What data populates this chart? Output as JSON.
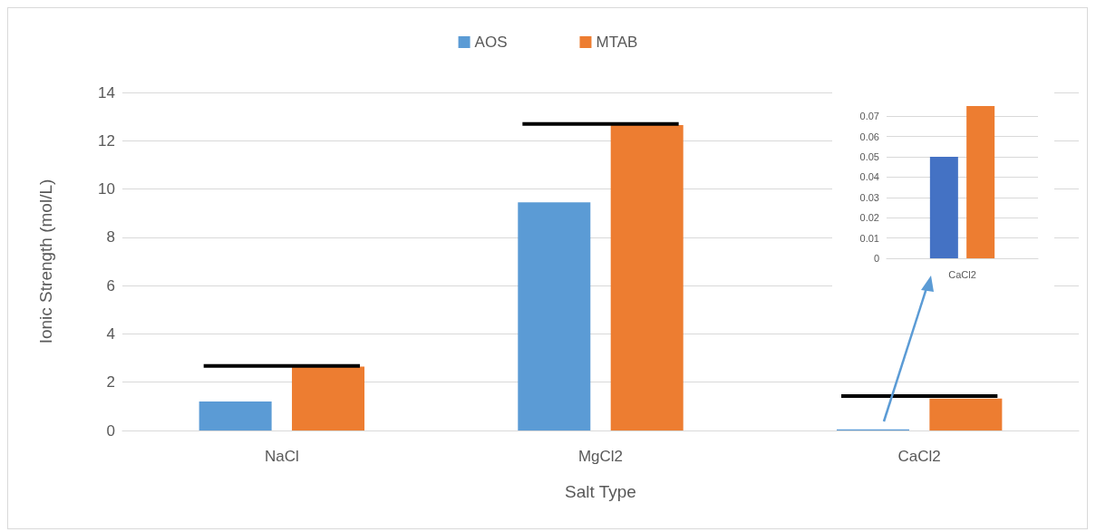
{
  "chart_data": [
    {
      "type": "bar",
      "xlabel": "Salt Type",
      "ylabel": "Ionic Strength (mol/L)",
      "categories": [
        "NaCl",
        "MgCl2",
        "CaCl2"
      ],
      "series": [
        {
          "name": "AOS",
          "color": "#5b9bd5",
          "values": [
            1.2,
            9.45,
            0.05
          ]
        },
        {
          "name": "MTAB",
          "color": "#ed7d31",
          "values": [
            2.65,
            12.65,
            1.32
          ]
        },
        {
          "color": "#000000",
          "base": [
            2.6,
            12.62,
            1.35
          ],
          "values": [
            0.15,
            0.15,
            0.15
          ]
        }
      ],
      "ylim": [
        0,
        14
      ],
      "yticks": [
        0,
        2,
        4,
        6,
        8,
        10,
        12,
        14
      ],
      "grid": "y",
      "legend": "top"
    },
    {
      "type": "bar",
      "categories": [
        "CaCl2"
      ],
      "series": [
        {
          "color": "#4472c4",
          "values": [
            0.05
          ]
        },
        {
          "color": "#ed7d31",
          "values": [
            0.075
          ]
        }
      ],
      "ylim": [
        0,
        0.075
      ],
      "yticks": [
        0,
        0.01,
        0.02,
        0.03,
        0.04,
        0.05,
        0.06,
        0.07
      ],
      "grid": "y"
    }
  ]
}
